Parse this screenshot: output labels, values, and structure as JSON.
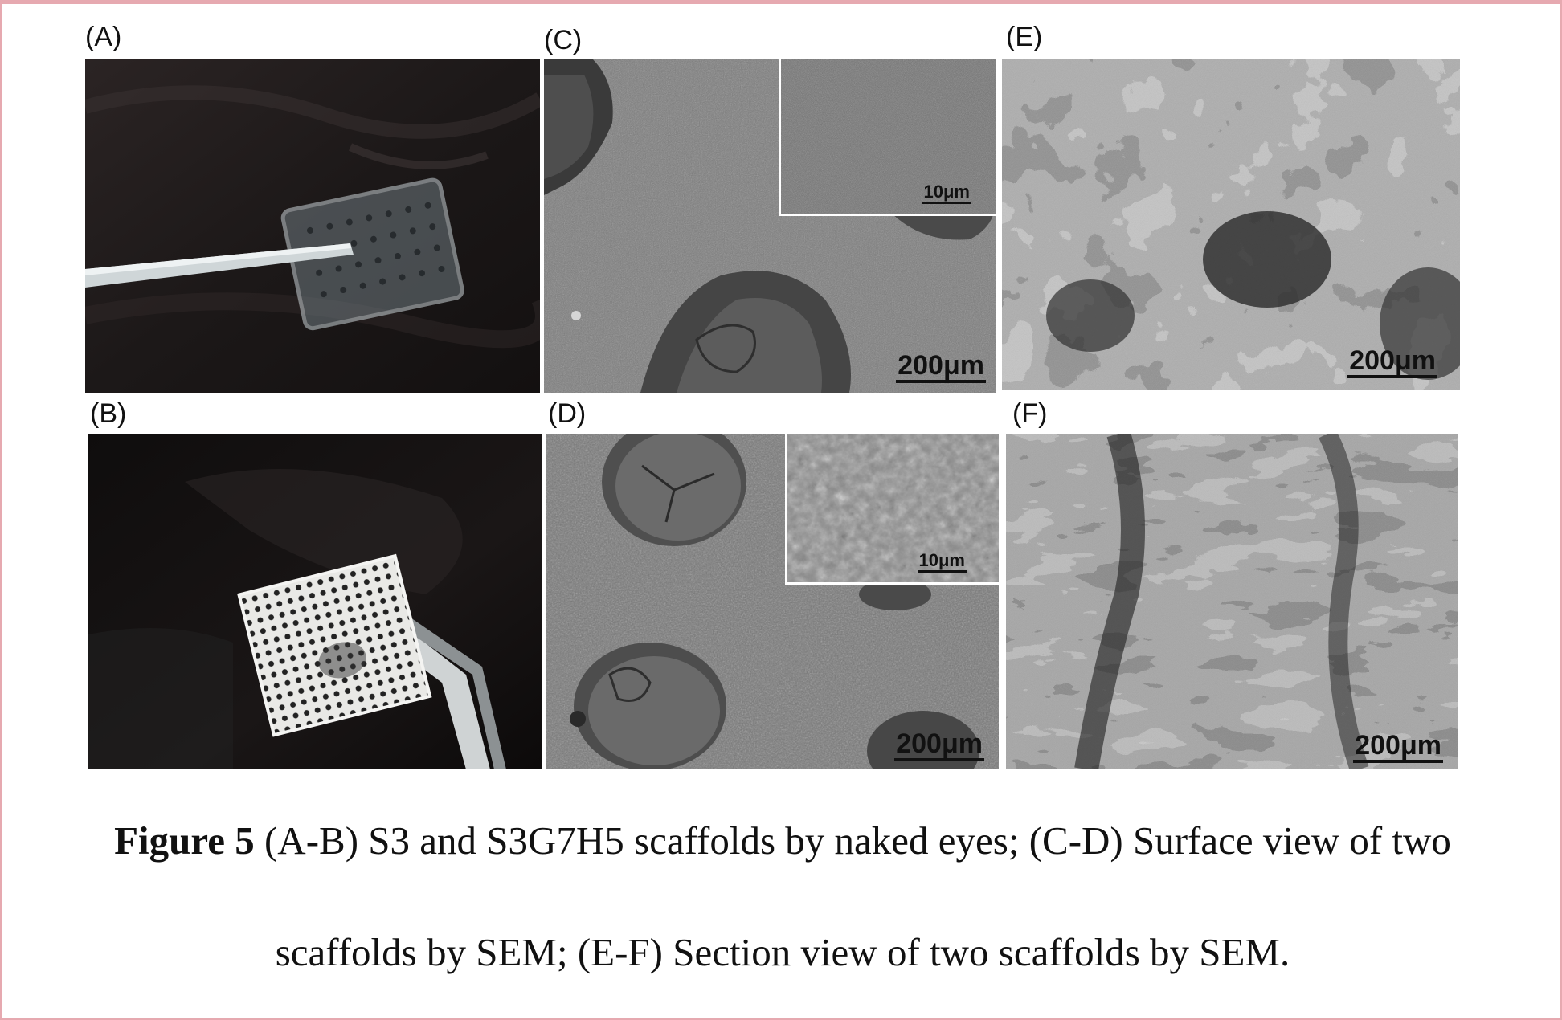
{
  "figure": {
    "panels": {
      "A": {
        "label": "(A)"
      },
      "B": {
        "label": "(B)"
      },
      "C": {
        "label": "(C)",
        "scale": "200μm",
        "inset_scale": "10μm"
      },
      "D": {
        "label": "(D)",
        "scale": "200μm",
        "inset_scale": "10μm"
      },
      "E": {
        "label": "(E)",
        "scale": "200μm"
      },
      "F": {
        "label": "(F)",
        "scale": "200μm"
      }
    },
    "caption": {
      "lead": "Figure 5",
      "line1": " (A-B) S3 and S3G7H5 scaffolds by naked eyes; (C-D) Surface view of two",
      "line2": "scaffolds by SEM; (E-F) Section view of two scaffolds by SEM."
    }
  },
  "colors": {
    "border": "#e6a9b0",
    "photo_bg": "#1e1b1b",
    "sem_gray": "#7a7a7a"
  }
}
